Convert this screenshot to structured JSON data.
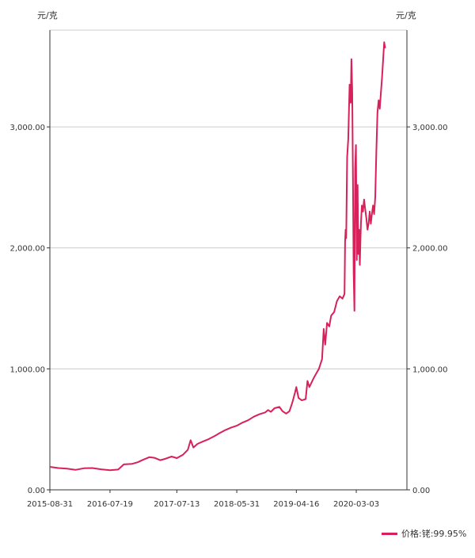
{
  "chart_data": {
    "type": "line",
    "unit_left": "元/克",
    "unit_right": "元/克",
    "legend": [
      {
        "name": "价格:铑:99.95%",
        "color": "#d7215a"
      }
    ],
    "ylim": [
      0,
      3800
    ],
    "yticks": [
      {
        "value": 0,
        "label": "0.00"
      },
      {
        "value": 1000,
        "label": "1,000.00"
      },
      {
        "value": 2000,
        "label": "2,000.00"
      },
      {
        "value": 3000,
        "label": "3,000.00"
      }
    ],
    "xlim": [
      "2015-08-31",
      "2020-11-30"
    ],
    "xticks": [
      "2015-08-31",
      "2016-07-19",
      "2017-07-13",
      "2018-05-31",
      "2019-04-16",
      "2020-03-03"
    ],
    "grid": "horizontal",
    "series": [
      {
        "name": "价格:铑:99.95%",
        "color": "#d7215a",
        "points": [
          [
            "2015-08-31",
            190
          ],
          [
            "2015-10-15",
            180
          ],
          [
            "2015-12-01",
            175
          ],
          [
            "2016-01-15",
            165
          ],
          [
            "2016-03-01",
            178
          ],
          [
            "2016-04-15",
            180
          ],
          [
            "2016-06-01",
            170
          ],
          [
            "2016-07-19",
            162
          ],
          [
            "2016-09-01",
            168
          ],
          [
            "2016-10-01",
            210
          ],
          [
            "2016-11-15",
            215
          ],
          [
            "2016-12-15",
            228
          ],
          [
            "2017-01-15",
            250
          ],
          [
            "2017-02-15",
            270
          ],
          [
            "2017-03-15",
            265
          ],
          [
            "2017-04-15",
            245
          ],
          [
            "2017-05-15",
            258
          ],
          [
            "2017-06-15",
            275
          ],
          [
            "2017-07-13",
            262
          ],
          [
            "2017-08-15",
            290
          ],
          [
            "2017-09-10",
            330
          ],
          [
            "2017-09-25",
            410
          ],
          [
            "2017-10-10",
            350
          ],
          [
            "2017-11-01",
            380
          ],
          [
            "2017-12-01",
            400
          ],
          [
            "2018-01-01",
            420
          ],
          [
            "2018-02-01",
            445
          ],
          [
            "2018-03-01",
            470
          ],
          [
            "2018-04-01",
            495
          ],
          [
            "2018-05-01",
            515
          ],
          [
            "2018-05-31",
            530
          ],
          [
            "2018-06-30",
            555
          ],
          [
            "2018-07-31",
            575
          ],
          [
            "2018-08-31",
            605
          ],
          [
            "2018-09-30",
            625
          ],
          [
            "2018-10-31",
            640
          ],
          [
            "2018-11-15",
            660
          ],
          [
            "2018-11-30",
            645
          ],
          [
            "2018-12-20",
            675
          ],
          [
            "2019-01-15",
            685
          ],
          [
            "2019-02-01",
            650
          ],
          [
            "2019-02-20",
            630
          ],
          [
            "2019-03-10",
            650
          ],
          [
            "2019-03-25",
            720
          ],
          [
            "2019-04-10",
            810
          ],
          [
            "2019-04-16",
            850
          ],
          [
            "2019-04-28",
            760
          ],
          [
            "2019-05-15",
            740
          ],
          [
            "2019-06-05",
            750
          ],
          [
            "2019-06-15",
            900
          ],
          [
            "2019-06-25",
            850
          ],
          [
            "2019-07-20",
            930
          ],
          [
            "2019-08-15",
            1000
          ],
          [
            "2019-09-01",
            1080
          ],
          [
            "2019-09-10",
            1330
          ],
          [
            "2019-09-18",
            1200
          ],
          [
            "2019-09-28",
            1380
          ],
          [
            "2019-10-10",
            1350
          ],
          [
            "2019-10-20",
            1440
          ],
          [
            "2019-11-05",
            1470
          ],
          [
            "2019-11-20",
            1560
          ],
          [
            "2019-12-05",
            1600
          ],
          [
            "2019-12-20",
            1580
          ],
          [
            "2019-12-31",
            1620
          ],
          [
            "2020-01-03",
            2050
          ],
          [
            "2020-01-06",
            2150
          ],
          [
            "2020-01-09",
            2080
          ],
          [
            "2020-01-14",
            2750
          ],
          [
            "2020-01-20",
            2900
          ],
          [
            "2020-01-27",
            3350
          ],
          [
            "2020-02-02",
            3200
          ],
          [
            "2020-02-06",
            3560
          ],
          [
            "2020-02-10",
            3300
          ],
          [
            "2020-02-14",
            2600
          ],
          [
            "2020-02-18",
            1800
          ],
          [
            "2020-02-22",
            1480
          ],
          [
            "2020-02-26",
            2650
          ],
          [
            "2020-03-01",
            2850
          ],
          [
            "2020-03-03",
            2500
          ],
          [
            "2020-03-06",
            1900
          ],
          [
            "2020-03-10",
            2520
          ],
          [
            "2020-03-14",
            1950
          ],
          [
            "2020-03-18",
            2150
          ],
          [
            "2020-03-22",
            1860
          ],
          [
            "2020-03-28",
            2200
          ],
          [
            "2020-04-02",
            2350
          ],
          [
            "2020-04-08",
            2300
          ],
          [
            "2020-04-14",
            2400
          ],
          [
            "2020-04-20",
            2320
          ],
          [
            "2020-04-26",
            2250
          ],
          [
            "2020-05-02",
            2150
          ],
          [
            "2020-05-08",
            2200
          ],
          [
            "2020-05-14",
            2300
          ],
          [
            "2020-05-20",
            2200
          ],
          [
            "2020-05-26",
            2280
          ],
          [
            "2020-06-01",
            2350
          ],
          [
            "2020-06-07",
            2280
          ],
          [
            "2020-06-13",
            2420
          ],
          [
            "2020-06-19",
            2800
          ],
          [
            "2020-06-25",
            3120
          ],
          [
            "2020-07-01",
            3220
          ],
          [
            "2020-07-07",
            3150
          ],
          [
            "2020-07-13",
            3280
          ],
          [
            "2020-07-19",
            3400
          ],
          [
            "2020-07-25",
            3550
          ],
          [
            "2020-07-31",
            3700
          ],
          [
            "2020-08-05",
            3650
          ]
        ]
      }
    ]
  }
}
